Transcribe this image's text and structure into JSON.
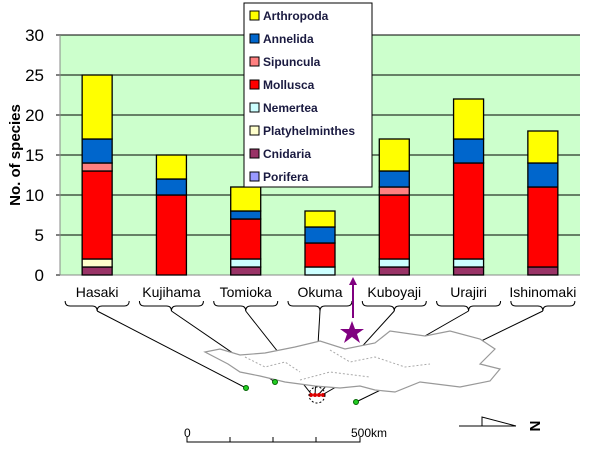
{
  "chart_data": {
    "type": "bar",
    "stacked": true,
    "title": "",
    "xlabel": "",
    "ylabel": "No. of species",
    "ylim": [
      0,
      30
    ],
    "yticks": [
      0,
      5,
      10,
      15,
      20,
      25,
      30
    ],
    "grid": true,
    "legend_position": "top-center",
    "categories": [
      "Hasaki",
      "Kujihama",
      "Tomioka",
      "Okuma",
      "Kuboyaji",
      "Urajiri",
      "Ishinomaki"
    ],
    "series": [
      {
        "name": "Porifera",
        "color": "#9999FF",
        "values": [
          0,
          0,
          0,
          0,
          0,
          0,
          0
        ]
      },
      {
        "name": "Cnidaria",
        "color": "#993366",
        "values": [
          1,
          0,
          1,
          0,
          1,
          1,
          1
        ]
      },
      {
        "name": "Platyhelminthes",
        "color": "#FFFFCC",
        "values": [
          1,
          0,
          0,
          0,
          0,
          0,
          0
        ]
      },
      {
        "name": "Nemertea",
        "color": "#CCFFFF",
        "values": [
          0,
          0,
          1,
          1,
          1,
          1,
          0
        ]
      },
      {
        "name": "Mollusca",
        "color": "#FF0000",
        "values": [
          11,
          10,
          5,
          3,
          8,
          12,
          10
        ]
      },
      {
        "name": "Sipuncula",
        "color": "#FF8080",
        "values": [
          1,
          0,
          0,
          0,
          1,
          0,
          0
        ]
      },
      {
        "name": "Annelida",
        "color": "#0066CC",
        "values": [
          3,
          2,
          1,
          2,
          2,
          3,
          3
        ]
      },
      {
        "name": "Arthropoda",
        "color": "#FFFF00",
        "values": [
          8,
          3,
          3,
          2,
          4,
          5,
          4
        ]
      }
    ],
    "legend_order": [
      "Arthropoda",
      "Annelida",
      "Sipuncula",
      "Mollusca",
      "Nemertea",
      "Platyhelminthes",
      "Cnidaria",
      "Porifera"
    ],
    "plot_background": "#CCFFCC"
  },
  "map": {
    "scale_start": "0",
    "scale_end": "500",
    "scale_unit": "km",
    "north_label": "N",
    "marker_color": "#800080"
  }
}
